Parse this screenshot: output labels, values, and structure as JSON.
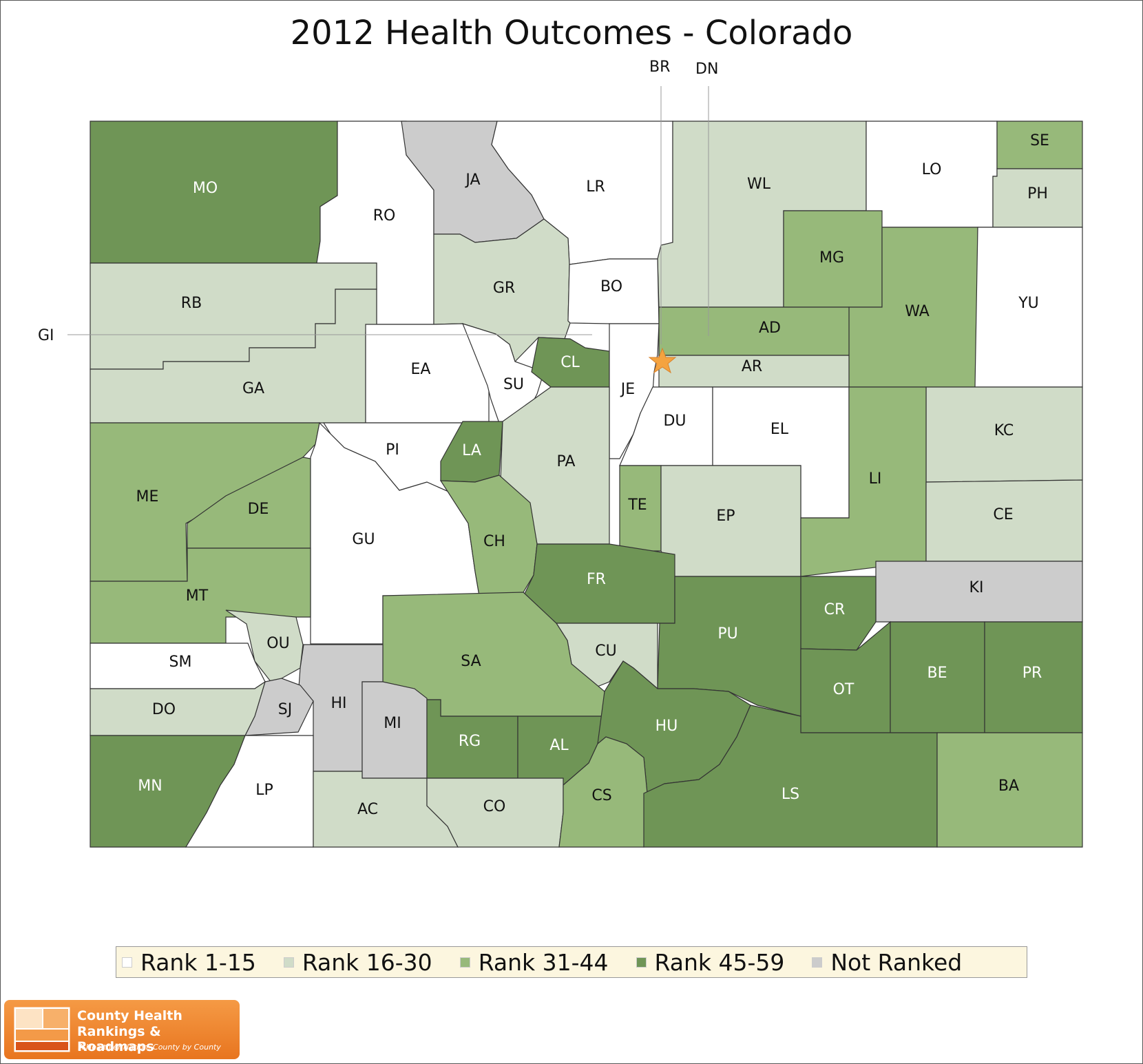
{
  "title": "2012 Health Outcomes - Colorado",
  "colors": {
    "rank_1_15": "#ffffff",
    "rank_16_30": "#d0dcc8",
    "rank_31_44": "#97b97a",
    "rank_45_59": "#6f9556",
    "not_ranked": "#cccccc"
  },
  "legend": [
    {
      "label": "Rank 1-15",
      "color": "#ffffff"
    },
    {
      "label": "Rank 16-30",
      "color": "#d0dcc8"
    },
    {
      "label": "Rank 31-44",
      "color": "#97b97a"
    },
    {
      "label": "Rank 45-59",
      "color": "#6f9556"
    },
    {
      "label": "Not Ranked",
      "color": "#cccccc"
    }
  ],
  "callouts": {
    "br": "BR",
    "dn": "DN",
    "gi": "GI"
  },
  "counties": [
    {
      "abbr": "MO",
      "rank_group": "45-59"
    },
    {
      "abbr": "RO",
      "rank_group": "1-15"
    },
    {
      "abbr": "JA",
      "rank_group": "not-ranked"
    },
    {
      "abbr": "LR",
      "rank_group": "1-15"
    },
    {
      "abbr": "WL",
      "rank_group": "16-30"
    },
    {
      "abbr": "LO",
      "rank_group": "1-15"
    },
    {
      "abbr": "SE",
      "rank_group": "31-44"
    },
    {
      "abbr": "PH",
      "rank_group": "16-30"
    },
    {
      "abbr": "RB",
      "rank_group": "16-30"
    },
    {
      "abbr": "GR",
      "rank_group": "16-30"
    },
    {
      "abbr": "BO",
      "rank_group": "1-15"
    },
    {
      "abbr": "MG",
      "rank_group": "31-44"
    },
    {
      "abbr": "WA",
      "rank_group": "31-44"
    },
    {
      "abbr": "YU",
      "rank_group": "1-15"
    },
    {
      "abbr": "GA",
      "rank_group": "16-30"
    },
    {
      "abbr": "EA",
      "rank_group": "1-15"
    },
    {
      "abbr": "SU",
      "rank_group": "1-15"
    },
    {
      "abbr": "CL",
      "rank_group": "45-59"
    },
    {
      "abbr": "JE",
      "rank_group": "1-15"
    },
    {
      "abbr": "AD",
      "rank_group": "31-44"
    },
    {
      "abbr": "AR",
      "rank_group": "16-30"
    },
    {
      "abbr": "DU",
      "rank_group": "1-15"
    },
    {
      "abbr": "EL",
      "rank_group": "1-15"
    },
    {
      "abbr": "KC",
      "rank_group": "16-30"
    },
    {
      "abbr": "PI",
      "rank_group": "1-15"
    },
    {
      "abbr": "LA",
      "rank_group": "45-59"
    },
    {
      "abbr": "PA",
      "rank_group": "16-30"
    },
    {
      "abbr": "ME",
      "rank_group": "31-44"
    },
    {
      "abbr": "DE",
      "rank_group": "31-44"
    },
    {
      "abbr": "TE",
      "rank_group": "31-44"
    },
    {
      "abbr": "EP",
      "rank_group": "16-30"
    },
    {
      "abbr": "LI",
      "rank_group": "31-44"
    },
    {
      "abbr": "CE",
      "rank_group": "16-30"
    },
    {
      "abbr": "GU",
      "rank_group": "1-15"
    },
    {
      "abbr": "CH",
      "rank_group": "31-44"
    },
    {
      "abbr": "FR",
      "rank_group": "45-59"
    },
    {
      "abbr": "MT",
      "rank_group": "31-44"
    },
    {
      "abbr": "KI",
      "rank_group": "not-ranked"
    },
    {
      "abbr": "CR",
      "rank_group": "45-59"
    },
    {
      "abbr": "PU",
      "rank_group": "45-59"
    },
    {
      "abbr": "OU",
      "rank_group": "16-30"
    },
    {
      "abbr": "CU",
      "rank_group": "16-30"
    },
    {
      "abbr": "SM",
      "rank_group": "1-15"
    },
    {
      "abbr": "SA",
      "rank_group": "31-44"
    },
    {
      "abbr": "HI",
      "rank_group": "not-ranked"
    },
    {
      "abbr": "SJ",
      "rank_group": "not-ranked"
    },
    {
      "abbr": "OT",
      "rank_group": "45-59"
    },
    {
      "abbr": "BE",
      "rank_group": "45-59"
    },
    {
      "abbr": "PR",
      "rank_group": "45-59"
    },
    {
      "abbr": "DO",
      "rank_group": "16-30"
    },
    {
      "abbr": "MI",
      "rank_group": "not-ranked"
    },
    {
      "abbr": "RG",
      "rank_group": "45-59"
    },
    {
      "abbr": "AL",
      "rank_group": "45-59"
    },
    {
      "abbr": "HU",
      "rank_group": "45-59"
    },
    {
      "abbr": "MN",
      "rank_group": "45-59"
    },
    {
      "abbr": "LP",
      "rank_group": "1-15"
    },
    {
      "abbr": "AC",
      "rank_group": "16-30"
    },
    {
      "abbr": "CO",
      "rank_group": "16-30"
    },
    {
      "abbr": "CS",
      "rank_group": "31-44"
    },
    {
      "abbr": "LS",
      "rank_group": "45-59"
    },
    {
      "abbr": "BA",
      "rank_group": "31-44"
    }
  ],
  "marker": "star-icon",
  "logo": {
    "line1": "County Health",
    "line2": "Rankings & Roadmaps",
    "tagline": "A Healthier Nation, County by County"
  }
}
